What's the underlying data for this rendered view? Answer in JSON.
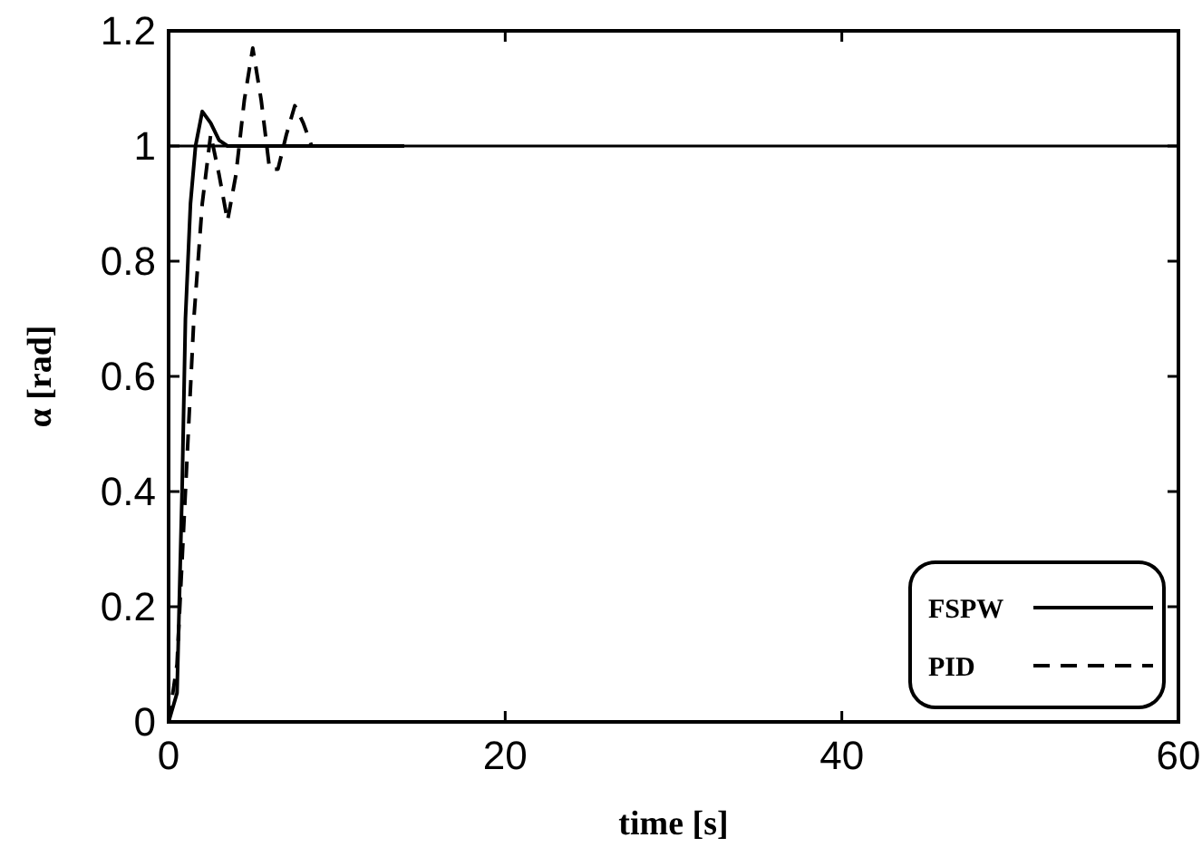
{
  "chart_data": {
    "type": "line",
    "xlabel": "time [s]",
    "ylabel": "α [rad]",
    "xlim": [
      0,
      60
    ],
    "ylim": [
      0,
      1.2
    ],
    "xticks": [
      0,
      20,
      40,
      60
    ],
    "yticks": [
      0,
      0.2,
      0.4,
      0.6,
      0.8,
      1,
      1.2
    ],
    "grid": false,
    "legend": "bottom right",
    "ref_lines": [
      {
        "axis": "y",
        "value": 1,
        "color": "#000000"
      }
    ],
    "series": [
      {
        "name": "FSPW",
        "color": "#000000",
        "line_style": "solid",
        "x": [
          0,
          0.5,
          0.8,
          1.0,
          1.3,
          1.6,
          2.0,
          2.5,
          3.0,
          3.5,
          5,
          14
        ],
        "values": [
          0,
          0.05,
          0.4,
          0.7,
          0.9,
          1.0,
          1.06,
          1.04,
          1.01,
          1.0,
          1.0,
          1.0
        ]
      },
      {
        "name": "PID",
        "color": "#000000",
        "line_style": "dashed",
        "x": [
          0,
          0.5,
          1,
          1.5,
          2,
          2.5,
          3,
          3.5,
          4,
          4.5,
          5,
          5.5,
          6,
          6.5,
          7,
          7.5,
          8,
          8.5,
          9,
          9.5
        ],
        "values": [
          0,
          0.1,
          0.4,
          0.7,
          0.9,
          1.02,
          0.95,
          0.87,
          0.95,
          1.08,
          1.17,
          1.08,
          0.96,
          0.96,
          1.02,
          1.07,
          1.04,
          1.0,
          1.0,
          1.0
        ]
      }
    ]
  }
}
